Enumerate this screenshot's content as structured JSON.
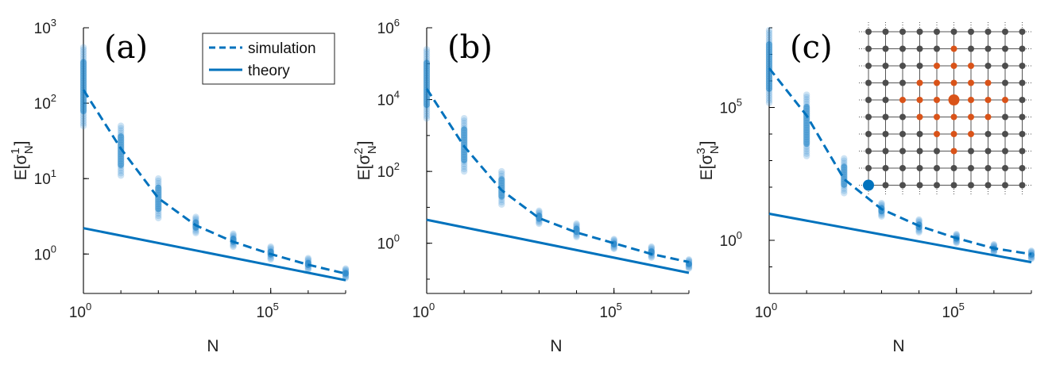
{
  "colors": {
    "series": "#0072BD",
    "scatter": "#4a9ad8",
    "inset_node": "#4d4d4d",
    "inset_highlight": "#D95319",
    "inset_source": "#0072BD"
  },
  "legend": {
    "placement": "top-right",
    "entries": [
      {
        "label": "simulation",
        "style": "dashed"
      },
      {
        "label": "theory",
        "style": "solid"
      }
    ]
  },
  "chart_data": [
    {
      "type": "line",
      "panel_label": "(a)",
      "xlabel": "N",
      "ylabel_base": "E[σ",
      "ylabel_sub": "N",
      "ylabel_sup": "1",
      "ylabel_end": "]",
      "x_scale": "log",
      "y_scale": "log",
      "xlim": [
        1,
        10000000
      ],
      "ylim": [
        0.3,
        1000
      ],
      "x_ticks": [
        {
          "value": 1,
          "base": "10",
          "exp": "0"
        },
        {
          "value": 100000,
          "base": "10",
          "exp": "5"
        }
      ],
      "y_ticks": [
        {
          "value": 1,
          "base": "10",
          "exp": "0"
        },
        {
          "value": 10,
          "base": "10",
          "exp": "1"
        },
        {
          "value": 100,
          "base": "10",
          "exp": "2"
        },
        {
          "value": 1000,
          "base": "10",
          "exp": "3"
        }
      ],
      "series": [
        {
          "name": "simulation",
          "style": "dashed",
          "x": [
            1,
            10,
            100,
            1000,
            10000,
            100000,
            1000000,
            10000000
          ],
          "y": [
            150,
            25,
            5.5,
            2.4,
            1.45,
            1.0,
            0.72,
            0.55
          ]
        },
        {
          "name": "theory",
          "style": "solid",
          "x": [
            1,
            10000000
          ],
          "y": [
            2.2,
            0.45
          ]
        }
      ],
      "scatter_ranges": [
        {
          "x": 1,
          "ymin": 50,
          "ymax": 550
        },
        {
          "x": 10,
          "ymin": 11,
          "ymax": 50
        },
        {
          "x": 100,
          "ymin": 3.0,
          "ymax": 10
        },
        {
          "x": 1000,
          "ymin": 1.9,
          "ymax": 3.1
        },
        {
          "x": 10000,
          "ymin": 1.25,
          "ymax": 1.85
        },
        {
          "x": 100000,
          "ymin": 0.85,
          "ymax": 1.25
        },
        {
          "x": 1000000,
          "ymin": 0.62,
          "ymax": 0.88
        },
        {
          "x": 10000000,
          "ymin": 0.48,
          "ymax": 0.64
        }
      ]
    },
    {
      "type": "line",
      "panel_label": "(b)",
      "xlabel": "N",
      "ylabel_base": "E[σ",
      "ylabel_sub": "N",
      "ylabel_sup": "2",
      "ylabel_end": "]",
      "x_scale": "log",
      "y_scale": "log",
      "xlim": [
        1,
        10000000
      ],
      "ylim": [
        0.04,
        1000000
      ],
      "x_ticks": [
        {
          "value": 1,
          "base": "10",
          "exp": "0"
        },
        {
          "value": 100000,
          "base": "10",
          "exp": "5"
        }
      ],
      "y_ticks": [
        {
          "value": 1,
          "base": "10",
          "exp": "0"
        },
        {
          "value": 100,
          "base": "10",
          "exp": "2"
        },
        {
          "value": 10000,
          "base": "10",
          "exp": "4"
        },
        {
          "value": 1000000,
          "base": "10",
          "exp": "6"
        }
      ],
      "series": [
        {
          "name": "simulation",
          "style": "dashed",
          "x": [
            1,
            10,
            100,
            1000,
            10000,
            100000,
            1000000,
            10000000
          ],
          "y": [
            20000,
            500,
            30,
            5,
            2,
            1,
            0.5,
            0.3
          ]
        },
        {
          "name": "theory",
          "style": "solid",
          "x": [
            1,
            10000000
          ],
          "y": [
            4.5,
            0.15
          ]
        }
      ],
      "scatter_ranges": [
        {
          "x": 1,
          "ymin": 3000,
          "ymax": 250000
        },
        {
          "x": 10,
          "ymin": 100,
          "ymax": 3000
        },
        {
          "x": 100,
          "ymin": 12,
          "ymax": 100
        },
        {
          "x": 1000,
          "ymin": 3.5,
          "ymax": 8
        },
        {
          "x": 10000,
          "ymin": 1.5,
          "ymax": 3.5
        },
        {
          "x": 100000,
          "ymin": 0.7,
          "ymax": 1.3
        },
        {
          "x": 1000000,
          "ymin": 0.4,
          "ymax": 0.8
        },
        {
          "x": 10000000,
          "ymin": 0.2,
          "ymax": 0.35
        }
      ]
    },
    {
      "type": "line",
      "panel_label": "(c)",
      "xlabel": "N",
      "ylabel_base": "E[σ",
      "ylabel_sub": "N",
      "ylabel_sup": "3",
      "ylabel_end": "]",
      "x_scale": "log",
      "y_scale": "log",
      "xlim": [
        1,
        10000000
      ],
      "ylim": [
        0.01,
        100000000
      ],
      "x_ticks": [
        {
          "value": 1,
          "base": "10",
          "exp": "0"
        },
        {
          "value": 100000,
          "base": "10",
          "exp": "5"
        }
      ],
      "y_ticks": [
        {
          "value": 1,
          "base": "10",
          "exp": "0"
        },
        {
          "value": 100000,
          "base": "10",
          "exp": "5"
        }
      ],
      "series": [
        {
          "name": "simulation",
          "style": "dashed",
          "x": [
            1,
            10,
            100,
            1000,
            10000,
            100000,
            1000000,
            10000000
          ],
          "y": [
            3000000,
            50000,
            200,
            15,
            3.5,
            1.2,
            0.5,
            0.3
          ]
        },
        {
          "name": "theory",
          "style": "solid",
          "x": [
            1,
            10000000
          ],
          "y": [
            10,
            0.15
          ]
        }
      ],
      "scatter_ranges": [
        {
          "x": 1,
          "ymin": 150000,
          "ymax": 80000000
        },
        {
          "x": 10,
          "ymin": 1500,
          "ymax": 300000
        },
        {
          "x": 100,
          "ymin": 60,
          "ymax": 1200
        },
        {
          "x": 1000,
          "ymin": 8,
          "ymax": 25
        },
        {
          "x": 10000,
          "ymin": 2,
          "ymax": 6
        },
        {
          "x": 100000,
          "ymin": 0.8,
          "ymax": 1.7
        },
        {
          "x": 1000000,
          "ymin": 0.35,
          "ymax": 0.7
        },
        {
          "x": 10000000,
          "ymin": 0.2,
          "ymax": 0.4
        }
      ],
      "inset": {
        "type": "lattice",
        "columns": 10,
        "rows": 10,
        "highlight_center": [
          5,
          4
        ],
        "highlight_radius": 3,
        "source": [
          0,
          9
        ]
      }
    }
  ]
}
